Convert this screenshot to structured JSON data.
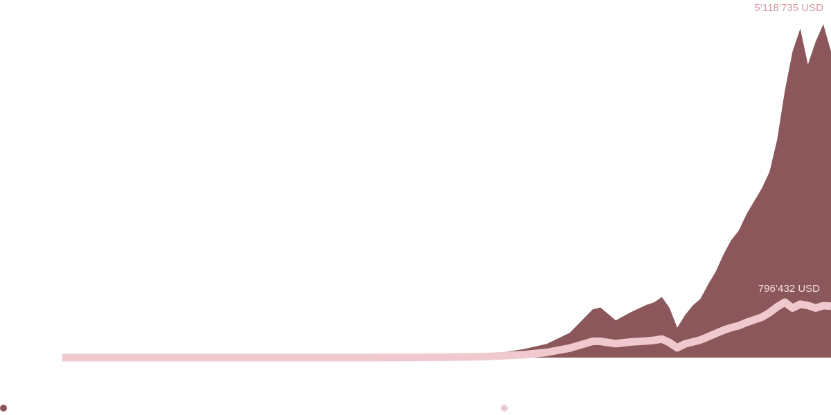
{
  "chart_data": {
    "type": "area",
    "title": "",
    "xlabel": "",
    "ylabel": "",
    "x": [
      0,
      10,
      20,
      30,
      35,
      40,
      45,
      50,
      55,
      60,
      63,
      66,
      69,
      70,
      72,
      74,
      76,
      77,
      78,
      79,
      80,
      81,
      82,
      83,
      84,
      85,
      86,
      87,
      88,
      89,
      90,
      91,
      92,
      93,
      94,
      95,
      96,
      97,
      98,
      99,
      100
    ],
    "ylim": [
      0,
      5500000
    ],
    "grid": true,
    "legend": "bottom-left",
    "colors": {
      "series1": "#8c575a",
      "series2": "#efc9cd",
      "label1": "#d59aa0",
      "label2": "#f3dfe1"
    },
    "series": [
      {
        "values": [
          0,
          0,
          0,
          0,
          0,
          0,
          5000,
          15000,
          40000,
          130000,
          210000,
          380000,
          740000,
          770000,
          570000,
          700000,
          810000,
          850000,
          930000,
          760000,
          460000,
          650000,
          800000,
          900000,
          1120000,
          1320000,
          1580000,
          1800000,
          1950000,
          2200000,
          2400000,
          2600000,
          2850000,
          3350000,
          4100000,
          4700000,
          5050000,
          4500000,
          4850000,
          5118735,
          4700000
        ],
        "end_label": "5’118’735 USD"
      },
      {
        "values": [
          0,
          0,
          0,
          0,
          0,
          0,
          2000,
          6000,
          15000,
          45000,
          80000,
          145000,
          250000,
          250000,
          215000,
          240000,
          255000,
          265000,
          285000,
          230000,
          150000,
          210000,
          240000,
          270000,
          320000,
          370000,
          420000,
          460000,
          490000,
          540000,
          580000,
          620000,
          690000,
          780000,
          850000,
          760000,
          820000,
          800000,
          760000,
          796432,
          790000
        ],
        "end_label": "796’432 USD"
      }
    ]
  }
}
